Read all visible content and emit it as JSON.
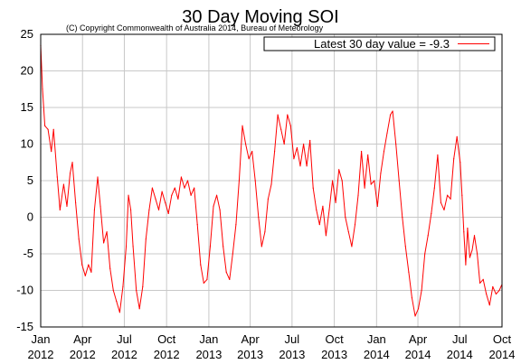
{
  "chart_data": {
    "type": "line",
    "title": "30 Day Moving SOI",
    "subtitle": "(C) Copyright Commonwealth of Australia 2014, Bureau of Meteorology",
    "xlabel": "",
    "ylabel": "",
    "ylim": [
      -15,
      25
    ],
    "yticks": [
      -15,
      -10,
      -5,
      0,
      5,
      10,
      15,
      20,
      25
    ],
    "xlim": [
      "2012-01-01",
      "2014-10-01"
    ],
    "xticks": [
      {
        "date": "2012-01-01",
        "label": [
          "Jan",
          "2012"
        ]
      },
      {
        "date": "2012-04-01",
        "label": [
          "Apr",
          "2012"
        ]
      },
      {
        "date": "2012-07-01",
        "label": [
          "Jul",
          "2012"
        ]
      },
      {
        "date": "2012-10-01",
        "label": [
          "Oct",
          "2012"
        ]
      },
      {
        "date": "2013-01-01",
        "label": [
          "Jan",
          "2013"
        ]
      },
      {
        "date": "2013-04-01",
        "label": [
          "Apr",
          "2013"
        ]
      },
      {
        "date": "2013-07-01",
        "label": [
          "Jul",
          "2013"
        ]
      },
      {
        "date": "2013-10-01",
        "label": [
          "Oct",
          "2013"
        ]
      },
      {
        "date": "2014-01-01",
        "label": [
          "Jan",
          "2014"
        ]
      },
      {
        "date": "2014-04-01",
        "label": [
          "Apr",
          "2014"
        ]
      },
      {
        "date": "2014-07-01",
        "label": [
          "Jul",
          "2014"
        ]
      },
      {
        "date": "2014-10-01",
        "label": [
          "Oct",
          "2014"
        ]
      }
    ],
    "grid": true,
    "legend_position": "top-right",
    "series": [
      {
        "name": "Latest 30 day value = -9.3",
        "color": "#ff0000",
        "points": [
          [
            "2012-01-01",
            23.5
          ],
          [
            "2012-01-05",
            17.5
          ],
          [
            "2012-01-10",
            12.5
          ],
          [
            "2012-01-17",
            12.0
          ],
          [
            "2012-01-24",
            9.0
          ],
          [
            "2012-01-29",
            12.0
          ],
          [
            "2012-02-06",
            5.5
          ],
          [
            "2012-02-12",
            1.0
          ],
          [
            "2012-02-20",
            4.5
          ],
          [
            "2012-02-27",
            1.5
          ],
          [
            "2012-03-05",
            6.0
          ],
          [
            "2012-03-10",
            7.5
          ],
          [
            "2012-03-17",
            2.0
          ],
          [
            "2012-03-24",
            -3.0
          ],
          [
            "2012-03-31",
            -6.5
          ],
          [
            "2012-04-07",
            -8.0
          ],
          [
            "2012-04-14",
            -6.5
          ],
          [
            "2012-04-20",
            -7.5
          ],
          [
            "2012-04-27",
            1.0
          ],
          [
            "2012-05-04",
            5.5
          ],
          [
            "2012-05-10",
            1.5
          ],
          [
            "2012-05-17",
            -3.5
          ],
          [
            "2012-05-24",
            -2.0
          ],
          [
            "2012-05-31",
            -7.0
          ],
          [
            "2012-06-07",
            -10.0
          ],
          [
            "2012-06-14",
            -11.5
          ],
          [
            "2012-06-21",
            -13.0
          ],
          [
            "2012-06-28",
            -9.5
          ],
          [
            "2012-07-05",
            -4.0
          ],
          [
            "2012-07-10",
            3.0
          ],
          [
            "2012-07-15",
            1.0
          ],
          [
            "2012-07-20",
            -4.0
          ],
          [
            "2012-07-27",
            -10.0
          ],
          [
            "2012-08-03",
            -12.5
          ],
          [
            "2012-08-10",
            -9.5
          ],
          [
            "2012-08-17",
            -3.0
          ],
          [
            "2012-08-24",
            1.0
          ],
          [
            "2012-08-31",
            4.0
          ],
          [
            "2012-09-07",
            2.5
          ],
          [
            "2012-09-14",
            1.0
          ],
          [
            "2012-09-21",
            3.5
          ],
          [
            "2012-09-28",
            2.0
          ],
          [
            "2012-10-05",
            0.5
          ],
          [
            "2012-10-12",
            3.0
          ],
          [
            "2012-10-19",
            4.0
          ],
          [
            "2012-10-26",
            2.5
          ],
          [
            "2012-11-02",
            5.5
          ],
          [
            "2012-11-09",
            4.0
          ],
          [
            "2012-11-16",
            5.0
          ],
          [
            "2012-11-23",
            3.0
          ],
          [
            "2012-11-30",
            4.0
          ],
          [
            "2012-12-07",
            -1.0
          ],
          [
            "2012-12-14",
            -6.5
          ],
          [
            "2012-12-21",
            -9.0
          ],
          [
            "2012-12-28",
            -8.5
          ],
          [
            "2013-01-04",
            -4.0
          ],
          [
            "2013-01-11",
            1.5
          ],
          [
            "2013-01-18",
            3.0
          ],
          [
            "2013-01-25",
            1.0
          ],
          [
            "2013-02-01",
            -4.0
          ],
          [
            "2013-02-08",
            -7.5
          ],
          [
            "2013-02-15",
            -8.5
          ],
          [
            "2013-02-22",
            -5.0
          ],
          [
            "2013-03-01",
            -1.0
          ],
          [
            "2013-03-08",
            5.0
          ],
          [
            "2013-03-15",
            12.5
          ],
          [
            "2013-03-22",
            10.0
          ],
          [
            "2013-03-29",
            8.0
          ],
          [
            "2013-04-05",
            9.0
          ],
          [
            "2013-04-12",
            5.0
          ],
          [
            "2013-04-19",
            0.0
          ],
          [
            "2013-04-26",
            -4.0
          ],
          [
            "2013-05-03",
            -2.0
          ],
          [
            "2013-05-10",
            2.5
          ],
          [
            "2013-05-17",
            4.5
          ],
          [
            "2013-05-24",
            9.0
          ],
          [
            "2013-05-31",
            14.0
          ],
          [
            "2013-06-07",
            12.0
          ],
          [
            "2013-06-14",
            10.0
          ],
          [
            "2013-06-21",
            14.0
          ],
          [
            "2013-06-28",
            12.5
          ],
          [
            "2013-07-05",
            8.0
          ],
          [
            "2013-07-12",
            9.5
          ],
          [
            "2013-07-19",
            7.0
          ],
          [
            "2013-07-26",
            10.0
          ],
          [
            "2013-08-02",
            7.0
          ],
          [
            "2013-08-09",
            10.5
          ],
          [
            "2013-08-16",
            4.0
          ],
          [
            "2013-08-23",
            1.0
          ],
          [
            "2013-08-30",
            -1.0
          ],
          [
            "2013-09-06",
            1.5
          ],
          [
            "2013-09-13",
            -2.5
          ],
          [
            "2013-09-20",
            1.0
          ],
          [
            "2013-09-27",
            5.0
          ],
          [
            "2013-10-04",
            2.0
          ],
          [
            "2013-10-11",
            6.5
          ],
          [
            "2013-10-18",
            5.0
          ],
          [
            "2013-10-25",
            0.0
          ],
          [
            "2013-11-01",
            -2.0
          ],
          [
            "2013-11-08",
            -4.0
          ],
          [
            "2013-11-15",
            -1.0
          ],
          [
            "2013-11-22",
            3.0
          ],
          [
            "2013-11-29",
            9.0
          ],
          [
            "2013-12-06",
            4.0
          ],
          [
            "2013-12-13",
            8.5
          ],
          [
            "2013-12-20",
            4.5
          ],
          [
            "2013-12-27",
            5.0
          ],
          [
            "2014-01-03",
            1.5
          ],
          [
            "2014-01-10",
            6.0
          ],
          [
            "2014-01-17",
            9.0
          ],
          [
            "2014-01-24",
            11.5
          ],
          [
            "2014-01-31",
            14.0
          ],
          [
            "2014-02-05",
            14.5
          ],
          [
            "2014-02-12",
            10.0
          ],
          [
            "2014-02-19",
            5.0
          ],
          [
            "2014-02-26",
            0.0
          ],
          [
            "2014-03-05",
            -4.0
          ],
          [
            "2014-03-12",
            -7.5
          ],
          [
            "2014-03-19",
            -11.0
          ],
          [
            "2014-03-26",
            -13.5
          ],
          [
            "2014-04-02",
            -12.5
          ],
          [
            "2014-04-09",
            -10.0
          ],
          [
            "2014-04-16",
            -5.0
          ],
          [
            "2014-04-23",
            -2.5
          ],
          [
            "2014-04-30",
            0.5
          ],
          [
            "2014-05-07",
            4.0
          ],
          [
            "2014-05-14",
            8.5
          ],
          [
            "2014-05-21",
            2.0
          ],
          [
            "2014-05-28",
            1.0
          ],
          [
            "2014-06-04",
            3.0
          ],
          [
            "2014-06-11",
            2.5
          ],
          [
            "2014-06-18",
            8.0
          ],
          [
            "2014-06-25",
            11.0
          ],
          [
            "2014-07-02",
            7.5
          ],
          [
            "2014-07-06",
            3.0
          ],
          [
            "2014-07-10",
            -2.0
          ],
          [
            "2014-07-14",
            -6.5
          ],
          [
            "2014-07-18",
            -1.5
          ],
          [
            "2014-07-23",
            -5.5
          ],
          [
            "2014-07-28",
            -4.5
          ],
          [
            "2014-08-02",
            -2.5
          ],
          [
            "2014-08-08",
            -5.0
          ],
          [
            "2014-08-14",
            -9.0
          ],
          [
            "2014-08-21",
            -8.5
          ],
          [
            "2014-08-28",
            -10.5
          ],
          [
            "2014-09-04",
            -12.0
          ],
          [
            "2014-09-11",
            -9.5
          ],
          [
            "2014-09-18",
            -10.5
          ],
          [
            "2014-09-25",
            -10.0
          ],
          [
            "2014-09-30",
            -9.3
          ]
        ]
      }
    ]
  }
}
